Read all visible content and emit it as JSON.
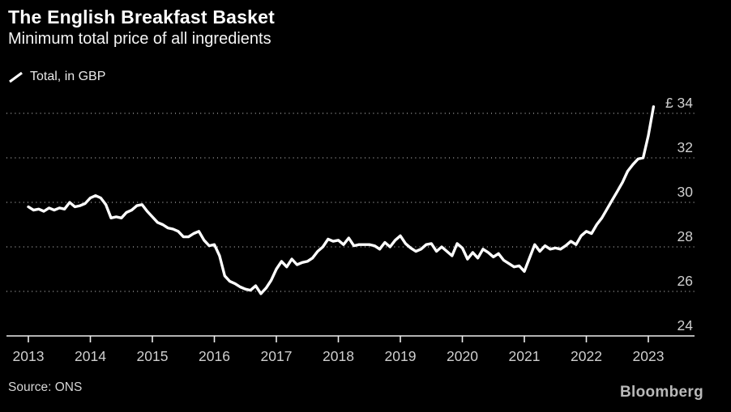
{
  "page": {
    "background": "#000000"
  },
  "header": {
    "title": "The English Breakfast Basket",
    "subtitle": "Minimum total price of all ingredients"
  },
  "legend": {
    "label": "Total, in GBP"
  },
  "footer": {
    "source": "Source: ONS",
    "brand": "Bloomberg"
  },
  "colors": {
    "background": "#000000",
    "line": "#ffffff",
    "gridline": "#8f8f8f",
    "axis": "#ededed",
    "tick_label": "#cfcfcf",
    "title": "#ffffff"
  },
  "chart_data": {
    "type": "line",
    "title": "The English Breakfast Basket",
    "subtitle": "Minimum total price of all ingredients",
    "xlabel": "",
    "ylabel": "",
    "unit": "GBP",
    "grid": "horizontal-dotted",
    "legend_position": "top-left",
    "x_start": {
      "year": 2013,
      "month": 1
    },
    "x_end": {
      "year": 2023,
      "month": 2
    },
    "x_ticks": [
      "2013",
      "2014",
      "2015",
      "2016",
      "2017",
      "2018",
      "2019",
      "2020",
      "2021",
      "2022",
      "2023"
    ],
    "y_ticks": [
      {
        "value": 24,
        "label": "24"
      },
      {
        "value": 26,
        "label": "26"
      },
      {
        "value": 28,
        "label": "28"
      },
      {
        "value": 30,
        "label": "30"
      },
      {
        "value": 32,
        "label": "32"
      },
      {
        "value": 34,
        "label": "£ 34"
      }
    ],
    "ylim": [
      24,
      34.9
    ],
    "series": [
      {
        "name": "Total, in GBP",
        "color": "#ffffff",
        "frequency": "monthly",
        "monthly_values": [
          29.8,
          29.65,
          29.7,
          29.6,
          29.75,
          29.65,
          29.75,
          29.7,
          30.0,
          29.8,
          29.85,
          29.95,
          30.2,
          30.3,
          30.2,
          29.9,
          29.3,
          29.35,
          29.3,
          29.55,
          29.65,
          29.85,
          29.9,
          29.6,
          29.35,
          29.1,
          29.0,
          28.85,
          28.8,
          28.7,
          28.45,
          28.45,
          28.6,
          28.7,
          28.3,
          28.05,
          28.1,
          27.6,
          26.7,
          26.45,
          26.35,
          26.2,
          26.1,
          26.05,
          26.25,
          25.9,
          26.15,
          26.5,
          27.0,
          27.35,
          27.1,
          27.45,
          27.2,
          27.3,
          27.35,
          27.5,
          27.8,
          28.0,
          28.35,
          28.25,
          28.3,
          28.1,
          28.4,
          28.05,
          28.1,
          28.1,
          28.1,
          28.05,
          27.9,
          28.2,
          28.0,
          28.3,
          28.5,
          28.15,
          27.95,
          27.8,
          27.9,
          28.1,
          28.15,
          27.8,
          28.0,
          27.8,
          27.6,
          28.15,
          27.95,
          27.45,
          27.75,
          27.5,
          27.9,
          27.75,
          27.55,
          27.7,
          27.4,
          27.25,
          27.1,
          27.15,
          26.9,
          27.5,
          28.1,
          27.8,
          28.05,
          27.9,
          27.95,
          27.9,
          28.05,
          28.25,
          28.1,
          28.5,
          28.7,
          28.6,
          29.0,
          29.3,
          29.7,
          30.1,
          30.5,
          30.9,
          31.4,
          31.7,
          31.95,
          32.0,
          33.0,
          34.3
        ]
      }
    ],
    "source": "ONS"
  }
}
